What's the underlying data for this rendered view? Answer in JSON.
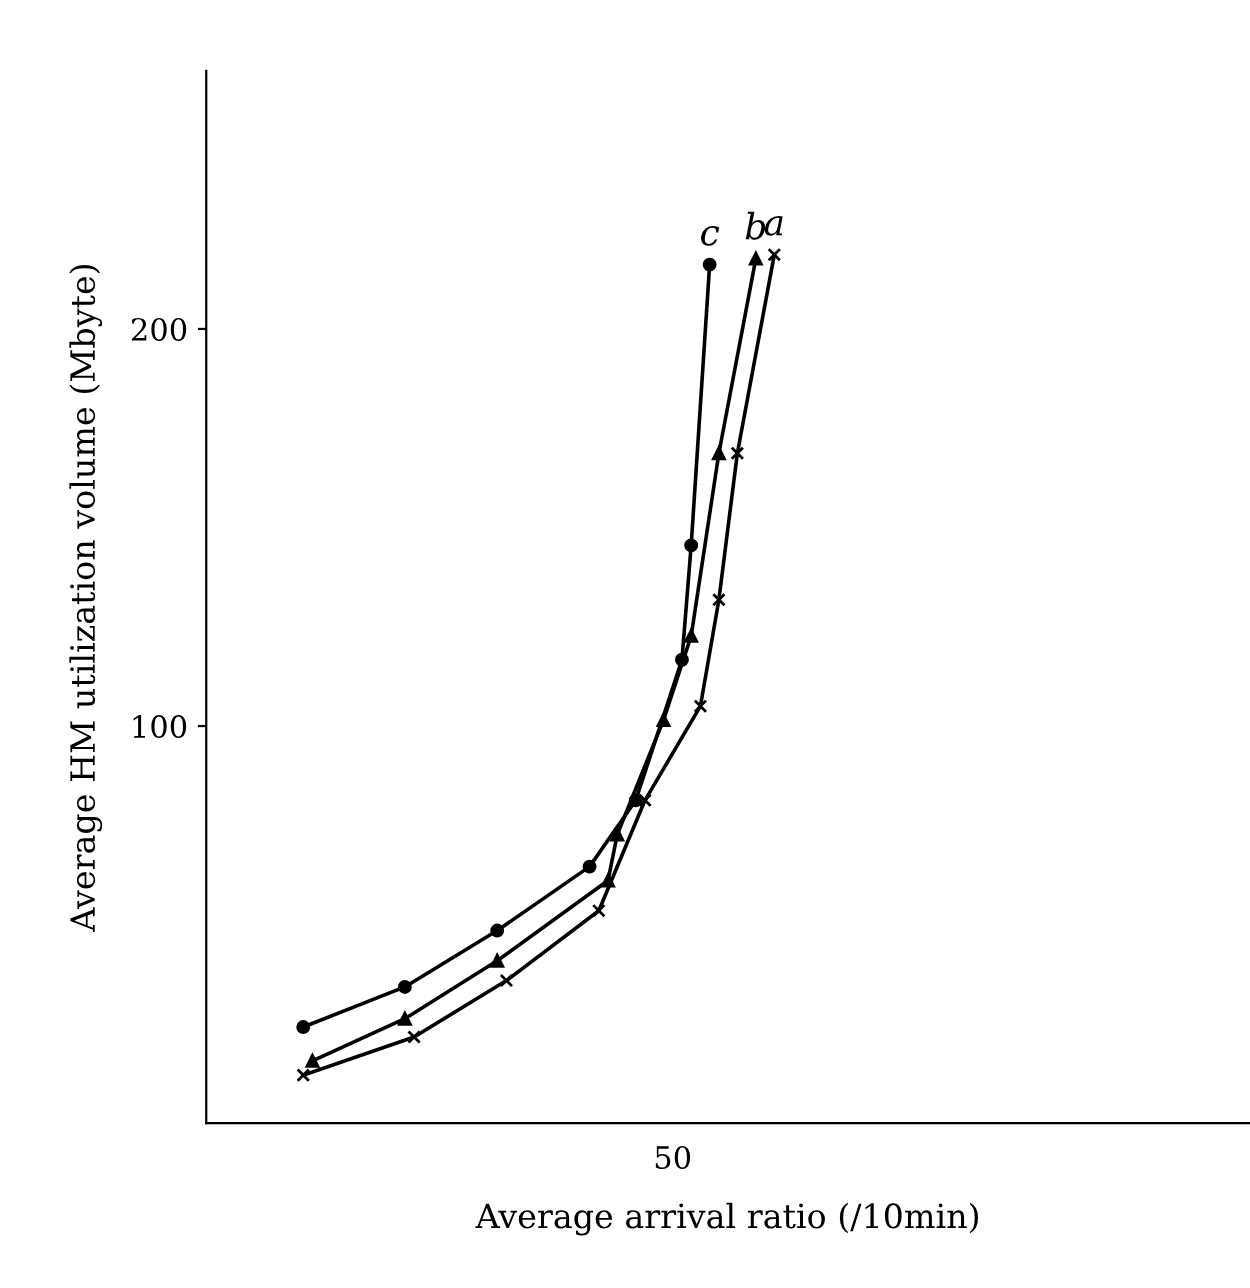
{
  "chart_data": {
    "type": "line",
    "xlabel": "Average arrival ratio (/10min)",
    "ylabel": "Average HM utilization volume (Mbyte)",
    "categories": [
      null,
      null,
      null,
      null,
      null,
      null,
      null,
      null,
      null,
      null,
      null,
      null,
      null,
      null,
      null,
      null,
      null,
      null,
      null,
      null,
      null,
      null,
      null,
      null,
      null,
      null,
      null,
      null,
      null,
      null,
      null,
      null,
      null,
      null,
      null,
      null,
      null,
      null,
      null,
      null,
      null,
      null,
      null,
      null,
      null,
      null,
      null,
      null,
      null,
      null,
      "50",
      null,
      null,
      null,
      null,
      null,
      null,
      null,
      null,
      null,
      null,
      null,
      null,
      null,
      null,
      null,
      null,
      null,
      null,
      null,
      null,
      null,
      null,
      null,
      null,
      null,
      null,
      null,
      null,
      null,
      null,
      null,
      null,
      null,
      null,
      null,
      null,
      null,
      null,
      null,
      null,
      null,
      null,
      null,
      null,
      null,
      null,
      null,
      null,
      null,
      null,
      null,
      null,
      null,
      null,
      null,
      null,
      null,
      null,
      null,
      null,
      null,
      null
    ],
    "ylim": [
      0,
      265
    ],
    "yticks": [
      100,
      200
    ],
    "grid": false,
    "legend": "top",
    "line_style": "solid",
    "series": [
      {
        "name": "c",
        "color": "#000000",
        "marker": "circle",
        "values": [
          null,
          null,
          null,
          null,
          null,
          null,
          null,
          null,
          null,
          null,
          24.2,
          null,
          null,
          null,
          null,
          null,
          null,
          null,
          null,
          null,
          null,
          34.3,
          null,
          null,
          null,
          null,
          null,
          null,
          null,
          null,
          null,
          48.5,
          null,
          null,
          null,
          null,
          null,
          null,
          null,
          null,
          null,
          64.6,
          null,
          null,
          null,
          null,
          81.3,
          null,
          null,
          null,
          null,
          116.7,
          145.5,
          null,
          216.2,
          null,
          null,
          null,
          null,
          null,
          null,
          null,
          null,
          null,
          null,
          null,
          null,
          null,
          null,
          null,
          null,
          null,
          null,
          null,
          null,
          null,
          null,
          null,
          null,
          null,
          null,
          null,
          null,
          null,
          null,
          null,
          null,
          null,
          null,
          null,
          null,
          null,
          null,
          null,
          null,
          null,
          null,
          null,
          null,
          null,
          null,
          null,
          null,
          null,
          null,
          null,
          null,
          null,
          null,
          null,
          null,
          null,
          null
        ]
      },
      {
        "name": "b",
        "color": "#000000",
        "marker": "triangle",
        "values": [
          null,
          null,
          null,
          null,
          null,
          null,
          null,
          null,
          null,
          null,
          null,
          15.7,
          null,
          null,
          null,
          null,
          null,
          null,
          null,
          null,
          null,
          26.3,
          null,
          null,
          null,
          null,
          null,
          null,
          null,
          null,
          null,
          40.9,
          null,
          null,
          null,
          null,
          null,
          null,
          null,
          null,
          null,
          null,
          null,
          61.1,
          72.7,
          null,
          null,
          null,
          null,
          101.5,
          null,
          null,
          122.7,
          null,
          null,
          168.7,
          null,
          null,
          null,
          217.7,
          null,
          null,
          null,
          null,
          null,
          null,
          null,
          null,
          null,
          null,
          null,
          null,
          null,
          null,
          null,
          null,
          null,
          null,
          null,
          null,
          null,
          null,
          null,
          null,
          null,
          null,
          null,
          null,
          null,
          null,
          null,
          null,
          null,
          null,
          null,
          null,
          null,
          null,
          null,
          null,
          null,
          null,
          null,
          null,
          null,
          null,
          null,
          null,
          null,
          null,
          null,
          null,
          null
        ]
      },
      {
        "name": "a",
        "color": "#000000",
        "marker": "cross",
        "values": [
          null,
          null,
          null,
          null,
          null,
          null,
          null,
          null,
          null,
          null,
          12.1,
          null,
          null,
          null,
          null,
          null,
          null,
          null,
          null,
          null,
          null,
          null,
          21.7,
          null,
          null,
          null,
          null,
          null,
          null,
          null,
          null,
          null,
          35.9,
          null,
          null,
          null,
          null,
          null,
          null,
          null,
          null,
          null,
          53.5,
          null,
          null,
          null,
          null,
          81.3,
          null,
          null,
          null,
          null,
          null,
          105,
          null,
          131.8,
          null,
          168.7,
          null,
          null,
          null,
          218.7,
          null,
          null,
          null,
          null,
          null,
          null,
          null,
          null,
          null,
          null,
          null,
          null,
          null,
          null,
          null,
          null,
          null,
          null,
          null,
          null,
          null,
          null,
          null,
          null,
          null,
          null,
          null,
          null,
          null,
          null,
          null,
          null,
          null,
          null,
          null,
          null,
          null,
          null,
          null,
          null,
          null,
          null,
          null,
          null,
          null,
          null,
          null,
          null,
          null,
          null,
          null
        ]
      }
    ]
  }
}
